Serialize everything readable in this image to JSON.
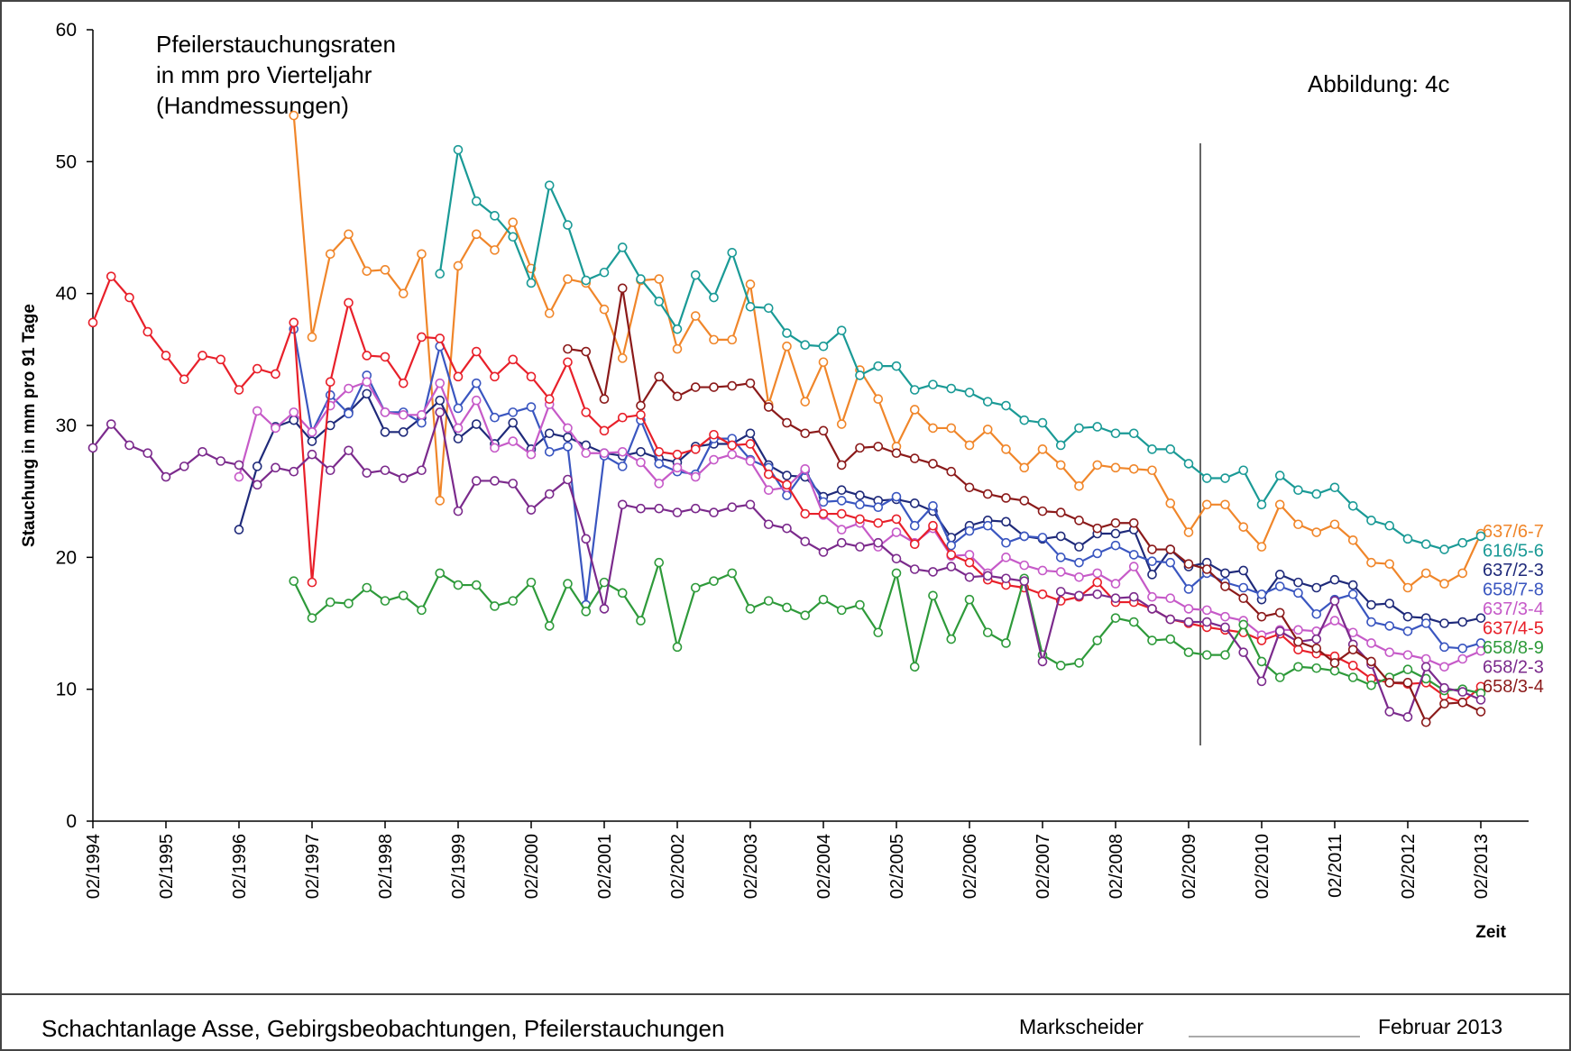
{
  "chart_data": {
    "type": "line",
    "title": [
      "Pfeilerstauchungsraten",
      "in mm pro Vierteljahr",
      "(Handmessungen)"
    ],
    "annotation": "Abbildung:  4c",
    "ylabel": "Stauchung in mm pro 91 Tage",
    "xlabel": "Zeit",
    "ylim": [
      0,
      60
    ],
    "yticks": [
      0,
      10,
      20,
      30,
      40,
      50,
      60
    ],
    "grid": false,
    "x": [
      "02/1994",
      "05/1994",
      "08/1994",
      "11/1994",
      "02/1995",
      "05/1995",
      "08/1995",
      "11/1995",
      "02/1996",
      "05/1996",
      "08/1996",
      "11/1996",
      "02/1997",
      "05/1997",
      "08/1997",
      "11/1997",
      "02/1998",
      "05/1998",
      "08/1998",
      "11/1998",
      "02/1999",
      "05/1999",
      "08/1999",
      "11/1999",
      "02/2000",
      "05/2000",
      "08/2000",
      "11/2000",
      "02/2001",
      "05/2001",
      "08/2001",
      "11/2001",
      "02/2002",
      "05/2002",
      "08/2002",
      "11/2002",
      "02/2003",
      "05/2003",
      "08/2003",
      "11/2003",
      "02/2004",
      "05/2004",
      "08/2004",
      "11/2004",
      "02/2005",
      "05/2005",
      "08/2005",
      "11/2005",
      "02/2006",
      "05/2006",
      "08/2006",
      "11/2006",
      "02/2007",
      "05/2007",
      "08/2007",
      "11/2007",
      "02/2008",
      "05/2008",
      "08/2008",
      "11/2008",
      "02/2009",
      "05/2009",
      "08/2009",
      "11/2009",
      "02/2010",
      "05/2010",
      "08/2010",
      "11/2010",
      "02/2011",
      "05/2011",
      "08/2011",
      "11/2011",
      "02/2012",
      "05/2012",
      "08/2012",
      "11/2012",
      "02/2013"
    ],
    "series": [
      {
        "name": "637/6-7",
        "color": "#f0862a",
        "values": [
          null,
          null,
          null,
          null,
          null,
          null,
          null,
          null,
          null,
          null,
          null,
          53.5,
          36.7,
          43.0,
          44.5,
          41.7,
          41.8,
          40.0,
          43.0,
          24.3,
          42.1,
          44.5,
          43.3,
          45.4,
          41.9,
          38.5,
          41.1,
          40.8,
          38.8,
          35.1,
          41.0,
          41.1,
          35.8,
          38.3,
          36.5,
          36.5,
          40.7,
          31.6,
          36.0,
          31.8,
          34.8,
          30.1,
          34.2,
          32.0,
          28.4,
          31.2,
          29.8,
          29.8,
          28.5,
          29.7,
          28.2,
          26.8,
          28.2,
          27.0,
          25.4,
          27.0,
          26.8,
          26.7,
          26.6,
          24.1,
          21.9,
          24.0,
          24.0,
          22.3,
          20.8,
          24.0,
          22.5,
          21.9,
          22.5,
          21.3,
          19.6,
          19.5,
          17.7,
          18.8,
          18.0,
          18.8,
          21.8
        ]
      },
      {
        "name": "616/5-6",
        "color": "#1a9a96",
        "values": [
          null,
          null,
          null,
          null,
          null,
          null,
          null,
          null,
          null,
          null,
          null,
          null,
          null,
          null,
          null,
          null,
          null,
          null,
          null,
          41.5,
          50.9,
          47.0,
          45.9,
          44.3,
          40.8,
          48.2,
          45.2,
          41.0,
          41.6,
          43.5,
          41.1,
          39.4,
          37.3,
          41.4,
          39.7,
          43.1,
          39.0,
          38.9,
          37.0,
          36.1,
          36.0,
          37.2,
          33.8,
          34.5,
          34.5,
          32.7,
          33.1,
          32.8,
          32.5,
          31.8,
          31.5,
          30.4,
          30.2,
          28.5,
          29.8,
          29.9,
          29.4,
          29.4,
          28.2,
          28.2,
          27.1,
          26.0,
          26.0,
          26.6,
          24.0,
          26.2,
          25.1,
          24.8,
          25.3,
          23.9,
          22.8,
          22.4,
          21.4,
          21.0,
          20.6,
          21.1,
          21.6
        ]
      },
      {
        "name": "637/2-3",
        "color": "#1f2a7a",
        "values": [
          null,
          null,
          null,
          null,
          null,
          null,
          null,
          null,
          22.1,
          26.9,
          29.9,
          30.4,
          28.8,
          30.0,
          31.0,
          32.4,
          29.5,
          29.5,
          30.6,
          31.9,
          29.0,
          30.1,
          28.6,
          30.2,
          28.2,
          29.4,
          29.1,
          28.5,
          27.9,
          27.7,
          28.0,
          27.5,
          27.2,
          28.4,
          28.6,
          28.6,
          29.4,
          27.0,
          26.2,
          26.1,
          24.6,
          25.1,
          24.7,
          24.3,
          24.4,
          24.1,
          23.5,
          21.5,
          22.4,
          22.8,
          22.7,
          21.6,
          21.4,
          21.6,
          20.8,
          21.8,
          21.8,
          22.1,
          18.7,
          20.6,
          19.3,
          19.6,
          18.8,
          19.0,
          16.8,
          18.7,
          18.1,
          17.7,
          18.3,
          17.9,
          16.4,
          16.5,
          15.5,
          15.4,
          15.0,
          15.1,
          15.4
        ]
      },
      {
        "name": "658/7-8",
        "color": "#3a56c0",
        "values": [
          null,
          null,
          null,
          null,
          null,
          null,
          null,
          null,
          null,
          null,
          null,
          37.3,
          29.5,
          32.3,
          30.9,
          33.8,
          31.0,
          31.0,
          30.2,
          36.0,
          31.3,
          33.2,
          30.6,
          31.0,
          31.4,
          28.0,
          28.4,
          16.4,
          27.7,
          26.9,
          30.4,
          27.1,
          26.5,
          26.3,
          29.0,
          29.0,
          27.4,
          26.8,
          24.7,
          26.6,
          24.2,
          24.3,
          24.0,
          23.8,
          24.6,
          22.4,
          23.9,
          20.9,
          22.0,
          22.4,
          21.1,
          21.6,
          21.5,
          20.0,
          19.6,
          20.3,
          20.9,
          20.2,
          19.7,
          19.6,
          17.6,
          18.8,
          18.1,
          17.7,
          17.2,
          17.8,
          17.3,
          15.7,
          16.8,
          17.2,
          15.1,
          14.8,
          14.4,
          15.0,
          13.2,
          13.1,
          13.5
        ]
      },
      {
        "name": "637/3-4",
        "color": "#c65ac8",
        "values": [
          null,
          null,
          null,
          null,
          null,
          null,
          null,
          null,
          26.1,
          31.1,
          29.8,
          31.0,
          29.5,
          31.5,
          32.8,
          33.3,
          31.0,
          30.8,
          30.8,
          33.2,
          29.8,
          31.9,
          28.3,
          28.8,
          27.8,
          31.6,
          29.8,
          27.9,
          27.9,
          28.0,
          27.2,
          25.6,
          26.8,
          26.1,
          27.4,
          27.8,
          27.3,
          25.1,
          25.3,
          26.7,
          23.2,
          22.1,
          22.6,
          20.8,
          21.9,
          21.1,
          22.2,
          20.1,
          20.2,
          18.8,
          20.0,
          19.4,
          19.0,
          18.9,
          18.5,
          18.8,
          18.0,
          19.3,
          17.0,
          16.9,
          16.1,
          16.0,
          15.5,
          15.2,
          14.1,
          14.5,
          14.5,
          14.4,
          15.2,
          14.3,
          13.5,
          12.8,
          12.6,
          12.3,
          11.7,
          12.3,
          12.9
        ]
      },
      {
        "name": "637/4-5",
        "color": "#e8202a",
        "values": [
          37.8,
          41.3,
          39.7,
          37.1,
          35.3,
          33.5,
          35.3,
          35.0,
          32.7,
          34.3,
          33.9,
          37.8,
          18.1,
          33.3,
          39.3,
          35.3,
          35.2,
          33.2,
          36.7,
          36.6,
          33.7,
          35.6,
          33.7,
          35.0,
          33.7,
          32.0,
          34.8,
          31.0,
          29.6,
          30.6,
          30.8,
          28.0,
          27.8,
          28.2,
          29.3,
          28.5,
          28.6,
          26.3,
          25.5,
          23.3,
          23.3,
          23.3,
          22.9,
          22.6,
          22.9,
          21.0,
          22.4,
          20.2,
          19.6,
          18.3,
          17.9,
          17.7,
          17.2,
          16.7,
          17.0,
          18.1,
          16.6,
          16.6,
          16.1,
          15.3,
          15.0,
          14.7,
          14.5,
          14.3,
          13.7,
          14.2,
          13.0,
          12.7,
          12.5,
          11.8,
          10.8,
          10.5,
          10.4,
          10.5,
          9.5,
          9.0,
          10.2
        ]
      },
      {
        "name": "658/8-9",
        "color": "#2e9a3a",
        "values": [
          null,
          null,
          null,
          null,
          null,
          null,
          null,
          null,
          null,
          null,
          null,
          18.2,
          15.4,
          16.6,
          16.5,
          17.7,
          16.7,
          17.1,
          16.0,
          18.8,
          17.9,
          17.9,
          16.3,
          16.7,
          18.1,
          14.8,
          18.0,
          15.9,
          18.1,
          17.3,
          15.2,
          19.6,
          13.2,
          17.7,
          18.2,
          18.8,
          16.1,
          16.7,
          16.2,
          15.6,
          16.8,
          16.0,
          16.4,
          14.3,
          18.8,
          11.7,
          17.1,
          13.8,
          16.8,
          14.3,
          13.5,
          18.4,
          12.6,
          11.8,
          12.0,
          13.7,
          15.4,
          15.1,
          13.7,
          13.8,
          12.8,
          12.6,
          12.6,
          14.9,
          12.1,
          10.9,
          11.7,
          11.6,
          11.4,
          10.9,
          10.3,
          10.9,
          11.5,
          10.8,
          9.9,
          10.0,
          9.7
        ]
      },
      {
        "name": "658/2-3",
        "color": "#7b2a8c",
        "values": [
          28.3,
          30.1,
          28.5,
          27.9,
          26.1,
          26.9,
          28.0,
          27.3,
          27.0,
          25.5,
          26.8,
          26.5,
          27.8,
          26.6,
          28.1,
          26.4,
          26.6,
          26.0,
          26.6,
          31.0,
          23.5,
          25.8,
          25.8,
          25.6,
          23.6,
          24.8,
          25.9,
          21.4,
          16.1,
          24.0,
          23.7,
          23.7,
          23.4,
          23.7,
          23.4,
          23.8,
          24.0,
          22.5,
          22.2,
          21.2,
          20.4,
          21.1,
          20.8,
          21.1,
          19.9,
          19.1,
          18.9,
          19.3,
          18.5,
          18.6,
          18.4,
          18.2,
          12.1,
          17.4,
          17.1,
          17.2,
          16.9,
          17.0,
          16.1,
          15.3,
          15.1,
          15.1,
          14.7,
          12.8,
          10.6,
          14.4,
          13.6,
          13.8,
          16.7,
          13.4,
          11.9,
          8.3,
          7.9,
          11.7,
          10.1,
          9.8,
          9.2
        ]
      },
      {
        "name": "658/3-4",
        "color": "#8b1a1a",
        "values": [
          null,
          null,
          null,
          null,
          null,
          null,
          null,
          null,
          null,
          null,
          null,
          null,
          null,
          null,
          null,
          null,
          null,
          null,
          null,
          null,
          null,
          null,
          null,
          null,
          null,
          null,
          35.8,
          35.6,
          32.0,
          40.4,
          31.5,
          33.7,
          32.2,
          32.9,
          32.9,
          33.0,
          33.2,
          31.4,
          30.2,
          29.4,
          29.6,
          27.0,
          28.3,
          28.4,
          27.9,
          27.5,
          27.1,
          26.5,
          25.3,
          24.8,
          24.5,
          24.3,
          23.5,
          23.4,
          22.8,
          22.2,
          22.6,
          22.6,
          20.6,
          20.6,
          19.5,
          19.1,
          17.8,
          16.9,
          15.5,
          15.8,
          13.6,
          13.1,
          12.0,
          13.0,
          12.1,
          10.5,
          10.5,
          7.5,
          8.9,
          9.0,
          8.3
        ]
      }
    ]
  },
  "footer": {
    "project": "Schachtanlage Asse, Gebirgsbeobachtungen, Pfeilerstauchungen",
    "role": "Markscheider",
    "date": "Februar 2013"
  }
}
